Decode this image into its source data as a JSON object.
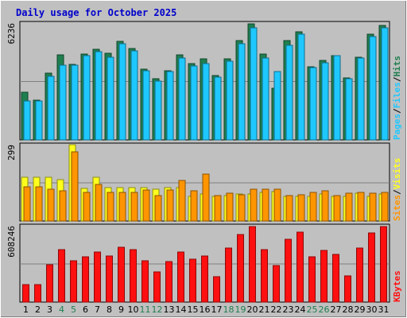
{
  "chart_data": {
    "type": "bar",
    "title": "Daily usage for October 2025",
    "days": [
      "1",
      "2",
      "3",
      "4",
      "5",
      "6",
      "7",
      "8",
      "9",
      "10",
      "11",
      "12",
      "13",
      "14",
      "15",
      "16",
      "17",
      "18",
      "19",
      "20",
      "21",
      "22",
      "23",
      "24",
      "25",
      "26",
      "27",
      "28",
      "29",
      "30",
      "31"
    ],
    "weekend_days": [
      "4",
      "5",
      "11",
      "12",
      "18",
      "19",
      "25",
      "26"
    ],
    "colors": {
      "pages": "#1c8054",
      "files": "#1ec8ff",
      "hits": "#1f7f4f",
      "visits": "#ffff1e",
      "sites": "#ff9500",
      "kbytes": "#ff1010",
      "title": "#0000cc",
      "weekday_label": "#000000",
      "weekend_label": "#1f7f4f",
      "plot_bg": "#c0c0c0",
      "frame_bg": "#c0c0c0"
    },
    "panels": [
      {
        "name": "hits_files",
        "max_label": "6236",
        "ymax": 6236,
        "right_label": [
          {
            "text": "Hits",
            "color": "#1f7f4f"
          },
          {
            "text": "/",
            "color": "#000000"
          },
          {
            "text": "Files",
            "color": "#1ec8ff"
          },
          {
            "text": "/",
            "color": "#000000"
          },
          {
            "text": "Pages",
            "color": "#1ec8ff"
          }
        ],
        "series": [
          {
            "name": "Hits",
            "values": [
              2560,
              2140,
              3560,
              4520,
              4040,
              4580,
              4850,
              4620,
              5270,
              4890,
              3770,
              3250,
              3700,
              4520,
              4090,
              4330,
              3430,
              4330,
              5290,
              6190,
              4580,
              2740,
              5290,
              5750,
              3890,
              4250,
              4510,
              3330,
              4410,
              5640,
              6100
            ]
          },
          {
            "name": "Files",
            "values": [
              2060,
              2060,
              3400,
              4000,
              3970,
              4490,
              4690,
              4430,
              5150,
              4760,
              3670,
              3130,
              3660,
              4390,
              3940,
              4070,
              3350,
              4220,
              5130,
              6000,
              4390,
              3660,
              5060,
              5640,
              3840,
              4100,
              4510,
              3250,
              4350,
              5530,
              5990
            ]
          }
        ]
      },
      {
        "name": "visits_sites",
        "max_label": "299",
        "ymax": 299,
        "right_label": [
          {
            "text": "Visits",
            "color": "#ffff1e"
          },
          {
            "text": "/",
            "color": "#000000"
          },
          {
            "text": "Sites",
            "color": "#ff9500"
          }
        ],
        "series": [
          {
            "name": "Visits",
            "values": [
              172,
              172,
              172,
              163,
              299,
              129,
              172,
              132,
              132,
              132,
              132,
              124,
              132,
              132,
              96,
              106,
              96,
              99,
              106,
              106,
              112,
              115,
              96,
              96,
              96,
              106,
              96,
              96,
              109,
              96,
              106
            ]
          },
          {
            "name": "Sites",
            "values": [
              135,
              135,
              125,
              118,
              270,
              112,
              142,
              112,
              112,
              112,
              122,
              99,
              122,
              159,
              118,
              185,
              99,
              109,
              102,
              125,
              125,
              125,
              99,
              102,
              112,
              118,
              99,
              109,
              112,
              109,
              112
            ]
          }
        ]
      },
      {
        "name": "kbytes",
        "max_label": "608246",
        "ymax": 608246,
        "right_label": [
          {
            "text": "KBytes",
            "color": "#ff1010"
          }
        ],
        "series": [
          {
            "name": "KBytes",
            "values": [
              140000,
              140000,
              300000,
              420000,
              330000,
              360000,
              400000,
              370000,
              440000,
              420000,
              330000,
              240000,
              320000,
              400000,
              340000,
              370000,
              200000,
              430000,
              540000,
              600000,
              420000,
              290000,
              500000,
              560000,
              360000,
              410000,
              380000,
              210000,
              430000,
              550000,
              600000
            ]
          }
        ]
      }
    ]
  }
}
